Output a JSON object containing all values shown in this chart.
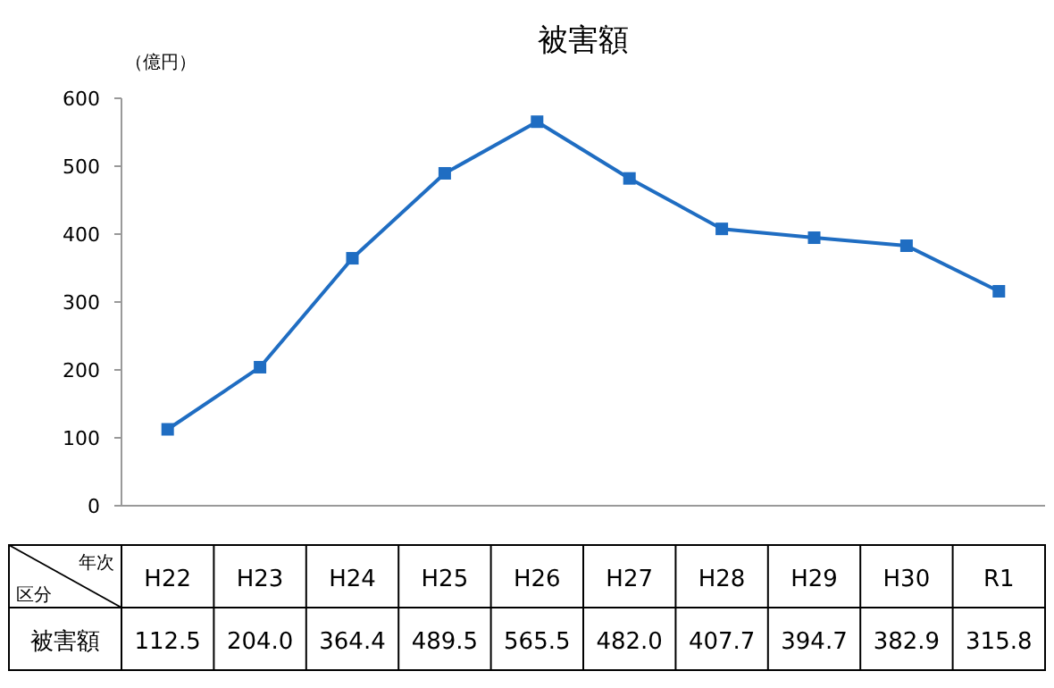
{
  "chart_data": {
    "type": "line",
    "title": "被害額",
    "ylabel": "（億円）",
    "categories": [
      "H22",
      "H23",
      "H24",
      "H25",
      "H26",
      "H27",
      "H28",
      "H29",
      "H30",
      "R1"
    ],
    "series": [
      {
        "color": "#1f6dc2",
        "values": [
          112.5,
          204.0,
          364.4,
          489.5,
          565.5,
          482.0,
          407.7,
          394.7,
          382.9,
          315.8
        ],
        "value_labels": [
          "112.5",
          "204.0",
          "364.4",
          "489.5",
          "565.5",
          "482.0",
          "407.7",
          "394.7",
          "382.9",
          "315.8"
        ]
      }
    ],
    "ylim": [
      0,
      600
    ],
    "yticks": [
      0,
      100,
      200,
      300,
      400,
      500,
      600
    ],
    "marker": "square",
    "line_style": "solid",
    "annotations": [
      "年次",
      "区分",
      "被害額"
    ]
  }
}
